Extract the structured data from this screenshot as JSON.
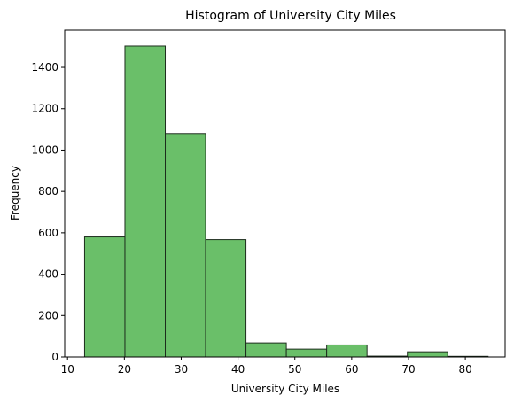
{
  "chart_data": {
    "type": "bar",
    "title": "Histogram of University City Miles",
    "xlabel": "University City Miles",
    "ylabel": "Frequency",
    "xlim": [
      9.5,
      87
    ],
    "ylim": [
      0,
      1580
    ],
    "xticks": [
      10,
      20,
      30,
      40,
      50,
      60,
      70,
      80
    ],
    "yticks": [
      0,
      200,
      400,
      600,
      800,
      1000,
      1200,
      1400
    ],
    "grid": false,
    "colors": {
      "bar_fill": "#6abf69",
      "bar_edge": "#1d2d1d"
    },
    "bins": [
      {
        "x0": 13.0,
        "x1": 20.1,
        "count": 580
      },
      {
        "x0": 20.1,
        "x1": 27.2,
        "count": 1503
      },
      {
        "x0": 27.2,
        "x1": 34.3,
        "count": 1080
      },
      {
        "x0": 34.3,
        "x1": 41.4,
        "count": 567
      },
      {
        "x0": 41.4,
        "x1": 48.5,
        "count": 68
      },
      {
        "x0": 48.5,
        "x1": 55.6,
        "count": 38
      },
      {
        "x0": 55.6,
        "x1": 62.7,
        "count": 58
      },
      {
        "x0": 62.7,
        "x1": 69.8,
        "count": 4
      },
      {
        "x0": 69.8,
        "x1": 76.9,
        "count": 25
      },
      {
        "x0": 76.9,
        "x1": 84.0,
        "count": 3
      }
    ]
  }
}
